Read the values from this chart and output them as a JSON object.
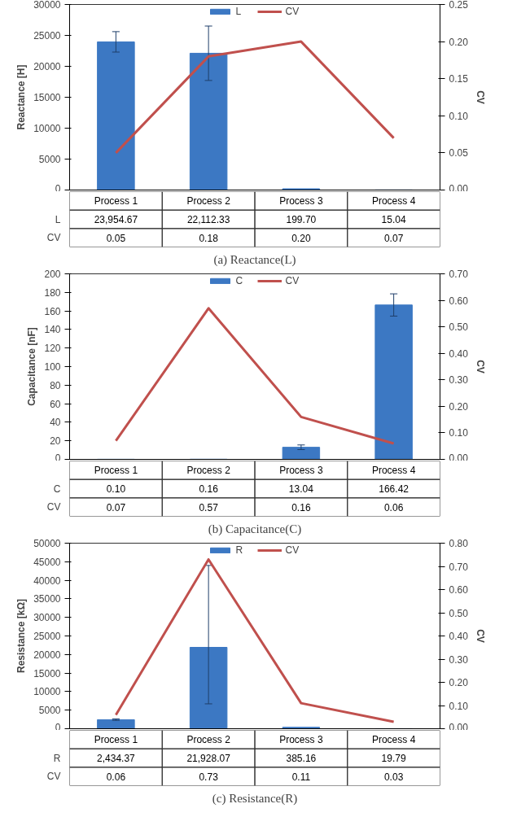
{
  "chart_data": [
    {
      "type": "bar",
      "title": "(a) Reactance(L)",
      "ylabel": "Reactance [H]",
      "y2label": "CV",
      "categories": [
        "Process 1",
        "Process 2",
        "Process 3",
        "Process 4"
      ],
      "ylim": [
        0,
        30000
      ],
      "yticks": [
        0,
        5000,
        10000,
        15000,
        20000,
        25000,
        30000
      ],
      "y2lim": [
        0,
        0.25
      ],
      "y2ticks": [
        {
          "value": 0,
          "label": "0.00"
        },
        {
          "value": 0.05,
          "label": "0.05"
        },
        {
          "value": 0.1,
          "label": "0.10"
        },
        {
          "value": 0.15,
          "label": "0.15"
        },
        {
          "value": 0.2,
          "label": "0.20"
        },
        {
          "value": 0.25,
          "label": "0.25"
        }
      ],
      "legend": "top",
      "grid": false,
      "series": [
        {
          "name": "L",
          "type": "bar",
          "color": "#3c78c3",
          "values": [
            23954.67,
            22112.33,
            199.7,
            15.04
          ],
          "value_labels": [
            "23,954.67",
            "22,112.33",
            "199.70",
            "15.04"
          ],
          "errors": [
            1650,
            4400,
            null,
            null
          ]
        },
        {
          "name": "CV",
          "type": "line",
          "axis": "y2",
          "color": "#c0504d",
          "values": [
            0.05,
            0.18,
            0.2,
            0.07
          ],
          "value_labels": [
            "0.05",
            "0.18",
            "0.20",
            "0.07"
          ]
        }
      ]
    },
    {
      "type": "bar",
      "title": "(b) Capacitance(C)",
      "ylabel": "Capacitance [nF]",
      "y2label": "CV",
      "categories": [
        "Process 1",
        "Process 2",
        "Process 3",
        "Process 4"
      ],
      "ylim": [
        0,
        200
      ],
      "yticks": [
        0,
        20,
        40,
        60,
        80,
        100,
        120,
        140,
        160,
        180,
        200
      ],
      "y2lim": [
        0,
        0.7
      ],
      "y2ticks": [
        {
          "value": 0,
          "label": "0.00"
        },
        {
          "value": 0.1,
          "label": "0.10"
        },
        {
          "value": 0.2,
          "label": "0.20"
        },
        {
          "value": 0.3,
          "label": "0.30"
        },
        {
          "value": 0.4,
          "label": "0.40"
        },
        {
          "value": 0.5,
          "label": "0.50"
        },
        {
          "value": 0.6,
          "label": "0.60"
        },
        {
          "value": 0.7,
          "label": "0.70"
        }
      ],
      "legend": "top",
      "grid": false,
      "series": [
        {
          "name": "C",
          "type": "bar",
          "color": "#3c78c3",
          "values": [
            0.1,
            0.16,
            13.04,
            166.42
          ],
          "value_labels": [
            "0.10",
            "0.16",
            "13.04",
            "166.42"
          ],
          "errors": [
            null,
            null,
            2.5,
            12
          ]
        },
        {
          "name": "CV",
          "type": "line",
          "axis": "y2",
          "color": "#c0504d",
          "values": [
            0.07,
            0.57,
            0.16,
            0.06
          ],
          "value_labels": [
            "0.07",
            "0.57",
            "0.16",
            "0.06"
          ]
        }
      ]
    },
    {
      "type": "bar",
      "title": "(c) Resistance(R)",
      "ylabel": "Resistance [kΩ]",
      "y2label": "CV",
      "categories": [
        "Process 1",
        "Process 2",
        "Process 3",
        "Process 4"
      ],
      "ylim": [
        0,
        50000
      ],
      "yticks": [
        0,
        5000,
        10000,
        15000,
        20000,
        25000,
        30000,
        35000,
        40000,
        45000,
        50000
      ],
      "y2lim": [
        0,
        0.8
      ],
      "y2ticks": [
        {
          "value": 0,
          "label": "0.00"
        },
        {
          "value": 0.1,
          "label": "0.10"
        },
        {
          "value": 0.2,
          "label": "0.20"
        },
        {
          "value": 0.3,
          "label": "0.30"
        },
        {
          "value": 0.4,
          "label": "0.40"
        },
        {
          "value": 0.5,
          "label": "0.50"
        },
        {
          "value": 0.6,
          "label": "0.60"
        },
        {
          "value": 0.7,
          "label": "0.70"
        },
        {
          "value": 0.8,
          "label": "0.80"
        }
      ],
      "legend": "top",
      "grid": false,
      "series": [
        {
          "name": "R",
          "type": "bar",
          "color": "#3c78c3",
          "values": [
            2434.37,
            21928.07,
            385.16,
            19.79
          ],
          "value_labels": [
            "2,434.37",
            "21,928.07",
            "385.16",
            "19.79"
          ],
          "errors": [
            200,
            [
              6700,
              44000
            ],
            null,
            null
          ]
        },
        {
          "name": "CV",
          "type": "line",
          "axis": "y2",
          "color": "#c0504d",
          "values": [
            0.06,
            0.73,
            0.11,
            0.03
          ],
          "value_labels": [
            "0.06",
            "0.73",
            "0.11",
            "0.03"
          ]
        }
      ]
    }
  ]
}
